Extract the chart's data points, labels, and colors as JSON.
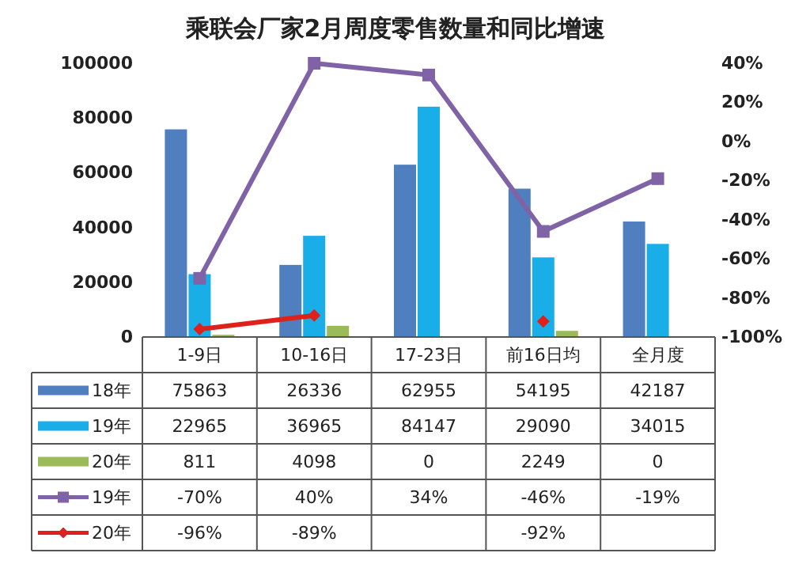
{
  "chart_data": {
    "type": "bar",
    "title": "乘联会厂家2月周度零售数量和同比增速",
    "categories": [
      "1-9日",
      "10-16日",
      "17-23日",
      "前16日均",
      "全月度"
    ],
    "series": [
      {
        "name": "18年",
        "color": "#4f7fbf",
        "values": [
          75863,
          26336,
          62955,
          54195,
          42187
        ]
      },
      {
        "name": "19年",
        "color": "#19aee8",
        "values": [
          22965,
          36965,
          84147,
          29090,
          34015
        ]
      },
      {
        "name": "20年",
        "color": "#9bbb59",
        "values": [
          811,
          4098,
          0,
          2249,
          0
        ]
      },
      {
        "name": "19年",
        "type": "line",
        "axis": "y2",
        "marker": "square",
        "color": "#7f63a6",
        "values": [
          -70,
          40,
          34,
          -46,
          -19
        ],
        "value_labels": [
          "-70%",
          "40%",
          "34%",
          "-46%",
          "-19%"
        ]
      },
      {
        "name": "20年",
        "type": "line",
        "axis": "y2",
        "marker": "diamond",
        "color": "#e0201b",
        "values": [
          -96,
          -89,
          null,
          -92,
          null
        ],
        "value_labels": [
          "-96%",
          "-89%",
          null,
          "-92%",
          null
        ]
      }
    ],
    "ylim": [
      0,
      100000
    ],
    "yticks": [
      0,
      20000,
      40000,
      60000,
      80000,
      100000
    ],
    "y2lim": [
      -100,
      40
    ],
    "y2ticks": [
      {
        "value": -100,
        "label": "-100%"
      },
      {
        "value": -80,
        "label": "-80%"
      },
      {
        "value": -60,
        "label": "-60%"
      },
      {
        "value": -40,
        "label": "-40%"
      },
      {
        "value": -20,
        "label": "-20%"
      },
      {
        "value": 0,
        "label": "0%"
      },
      {
        "value": 20,
        "label": "20%"
      },
      {
        "value": 40,
        "label": "40%"
      }
    ],
    "data_labels": true,
    "legend": "bottom"
  }
}
